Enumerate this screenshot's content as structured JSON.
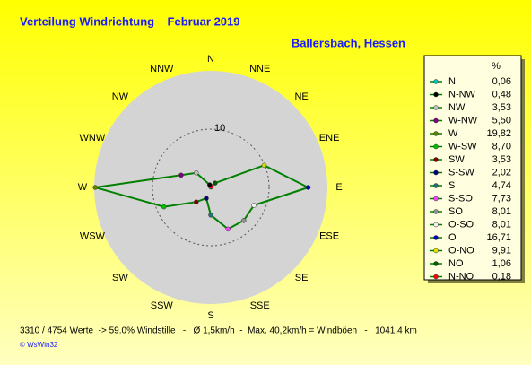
{
  "chart_data": {
    "type": "radar",
    "title": "Verteilung Windrichtung    Februar 2019",
    "subtitle": "Ballersbach, Hessen",
    "categories": [
      "N",
      "NNE",
      "NE",
      "ENE",
      "E",
      "ESE",
      "SE",
      "SSE",
      "S",
      "SSW",
      "SW",
      "WSW",
      "W",
      "WNW",
      "NW",
      "NNW"
    ],
    "series": [
      {
        "color": "#008000",
        "names": [
          "N",
          "N-NO",
          "NO",
          "O-NO",
          "O",
          "O-SO",
          "SO",
          "S-SO",
          "S",
          "S-SW",
          "SW",
          "W-SW",
          "W",
          "W-NW",
          "NW",
          "N-NW"
        ],
        "colors": [
          "#00c0c0",
          "#ff0000",
          "#006000",
          "#e0e000",
          "#0000c0",
          "#f0f0f0",
          "#909090",
          "#ff40ff",
          "#207070",
          "#000080",
          "#800000",
          "#00c000",
          "#608000",
          "#800080",
          "#c0c0c0",
          "#000000"
        ],
        "values": [
          0.06,
          0.18,
          1.06,
          9.91,
          16.71,
          8.01,
          8.01,
          7.73,
          4.74,
          2.02,
          3.53,
          8.7,
          19.82,
          5.5,
          3.53,
          0.48
        ],
        "value_labels": [
          "0,06",
          "0,18",
          "1,06",
          "9,91",
          "16,71",
          "8,01",
          "8,01",
          "7,73",
          "4,74",
          "2,02",
          "3,53",
          "8,70",
          "19,82",
          "5,50",
          "3,53",
          "0,48"
        ]
      }
    ],
    "legend_title": "%",
    "rlim": [
      0,
      20
    ],
    "rticks": [
      10
    ],
    "footer": "3310 / 4754 Werte  -> 59.0% Windstille   -   Ø 1,5km/h  -  Max. 40,2km/h = Windböen   -   1041.4 km",
    "credit": "© WsWin32"
  }
}
